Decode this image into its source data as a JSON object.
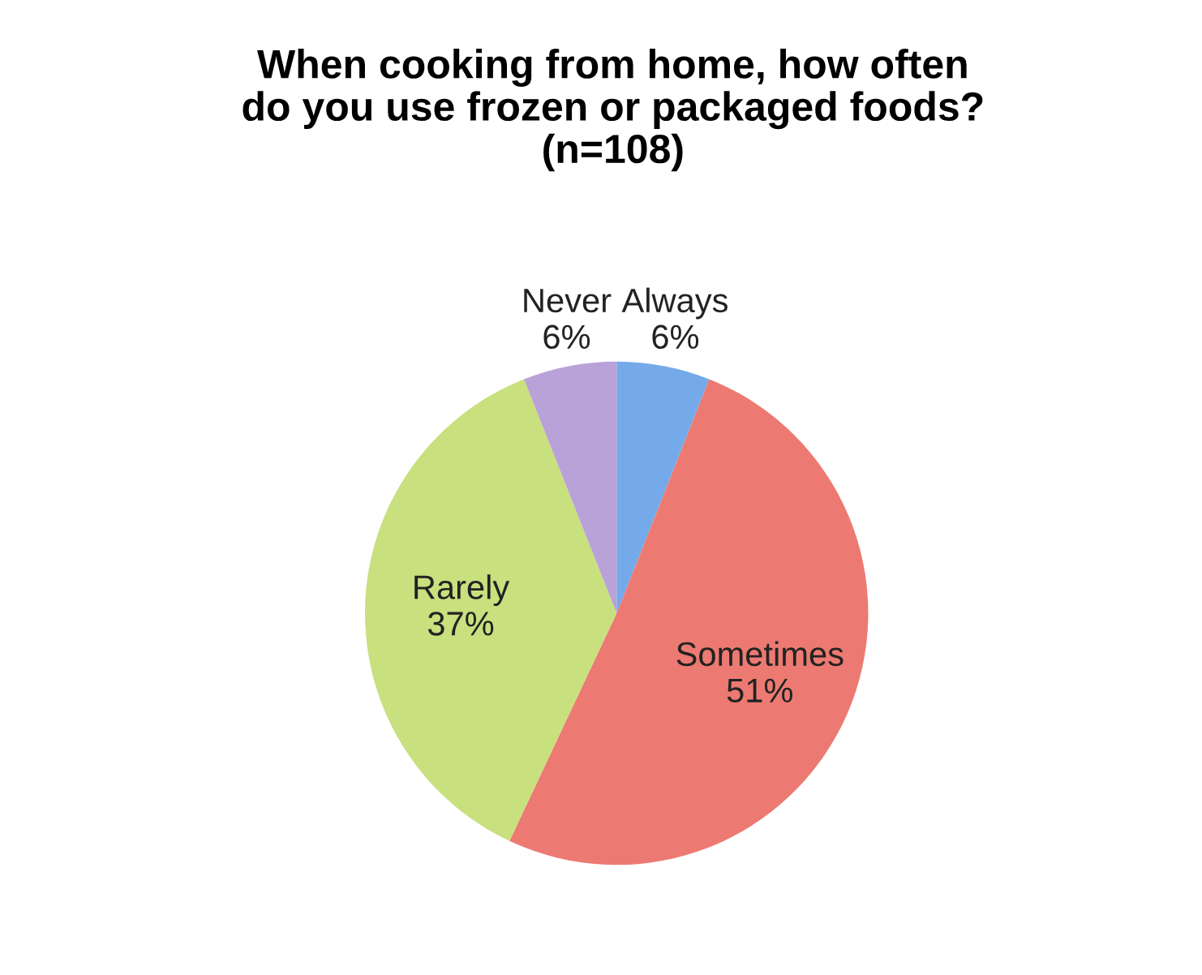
{
  "chart_data": {
    "type": "pie",
    "title": "When cooking from home, how often\ndo you use frozen or packaged foods?\n(n=108)",
    "categories": [
      "Always",
      "Sometimes",
      "Rarely",
      "Never"
    ],
    "values": [
      6,
      51,
      37,
      6
    ],
    "value_labels": [
      "6%",
      "51%",
      "37%",
      "6%"
    ],
    "colors": [
      "#74aaea",
      "#ec7a72",
      "#c8e07e",
      "#b8a2d8"
    ],
    "legend": false
  }
}
